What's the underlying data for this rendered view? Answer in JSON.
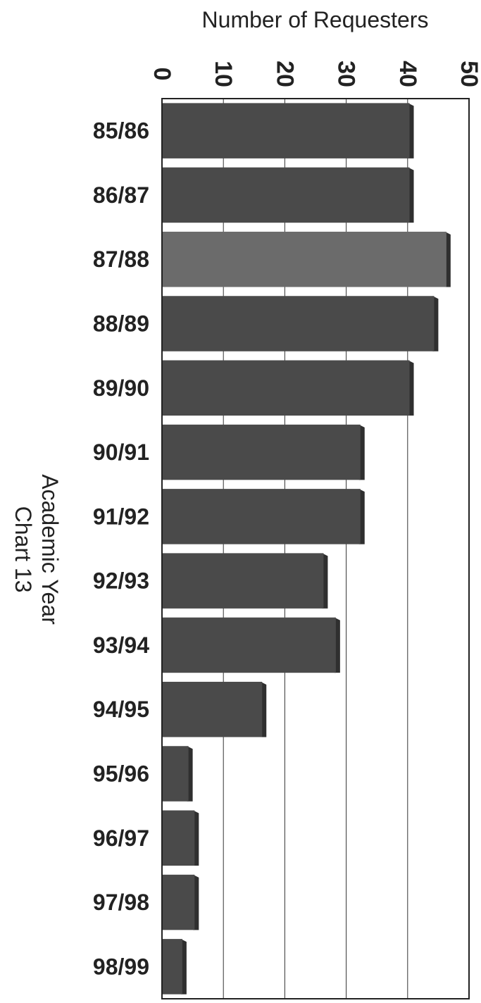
{
  "chart_data": {
    "type": "bar",
    "orientation": "horizontal",
    "title": "Chart 13",
    "xlabel": "Number of Requesters",
    "ylabel": "Academic Year",
    "xlim": [
      0,
      50
    ],
    "xticks": [
      "0",
      "10",
      "20",
      "30",
      "40",
      "50"
    ],
    "grid": true,
    "categories": [
      "85/86",
      "86/87",
      "87/88",
      "88/89",
      "89/90",
      "90/91",
      "91/92",
      "92/93",
      "93/94",
      "94/95",
      "95/96",
      "96/97",
      "97/98",
      "98/99"
    ],
    "values": [
      41,
      41,
      47,
      45,
      41,
      33,
      33,
      27,
      29,
      17,
      5,
      6,
      6,
      4
    ],
    "bar_color": "#4a4a4a",
    "highlight_color": "#6b6b6b"
  }
}
